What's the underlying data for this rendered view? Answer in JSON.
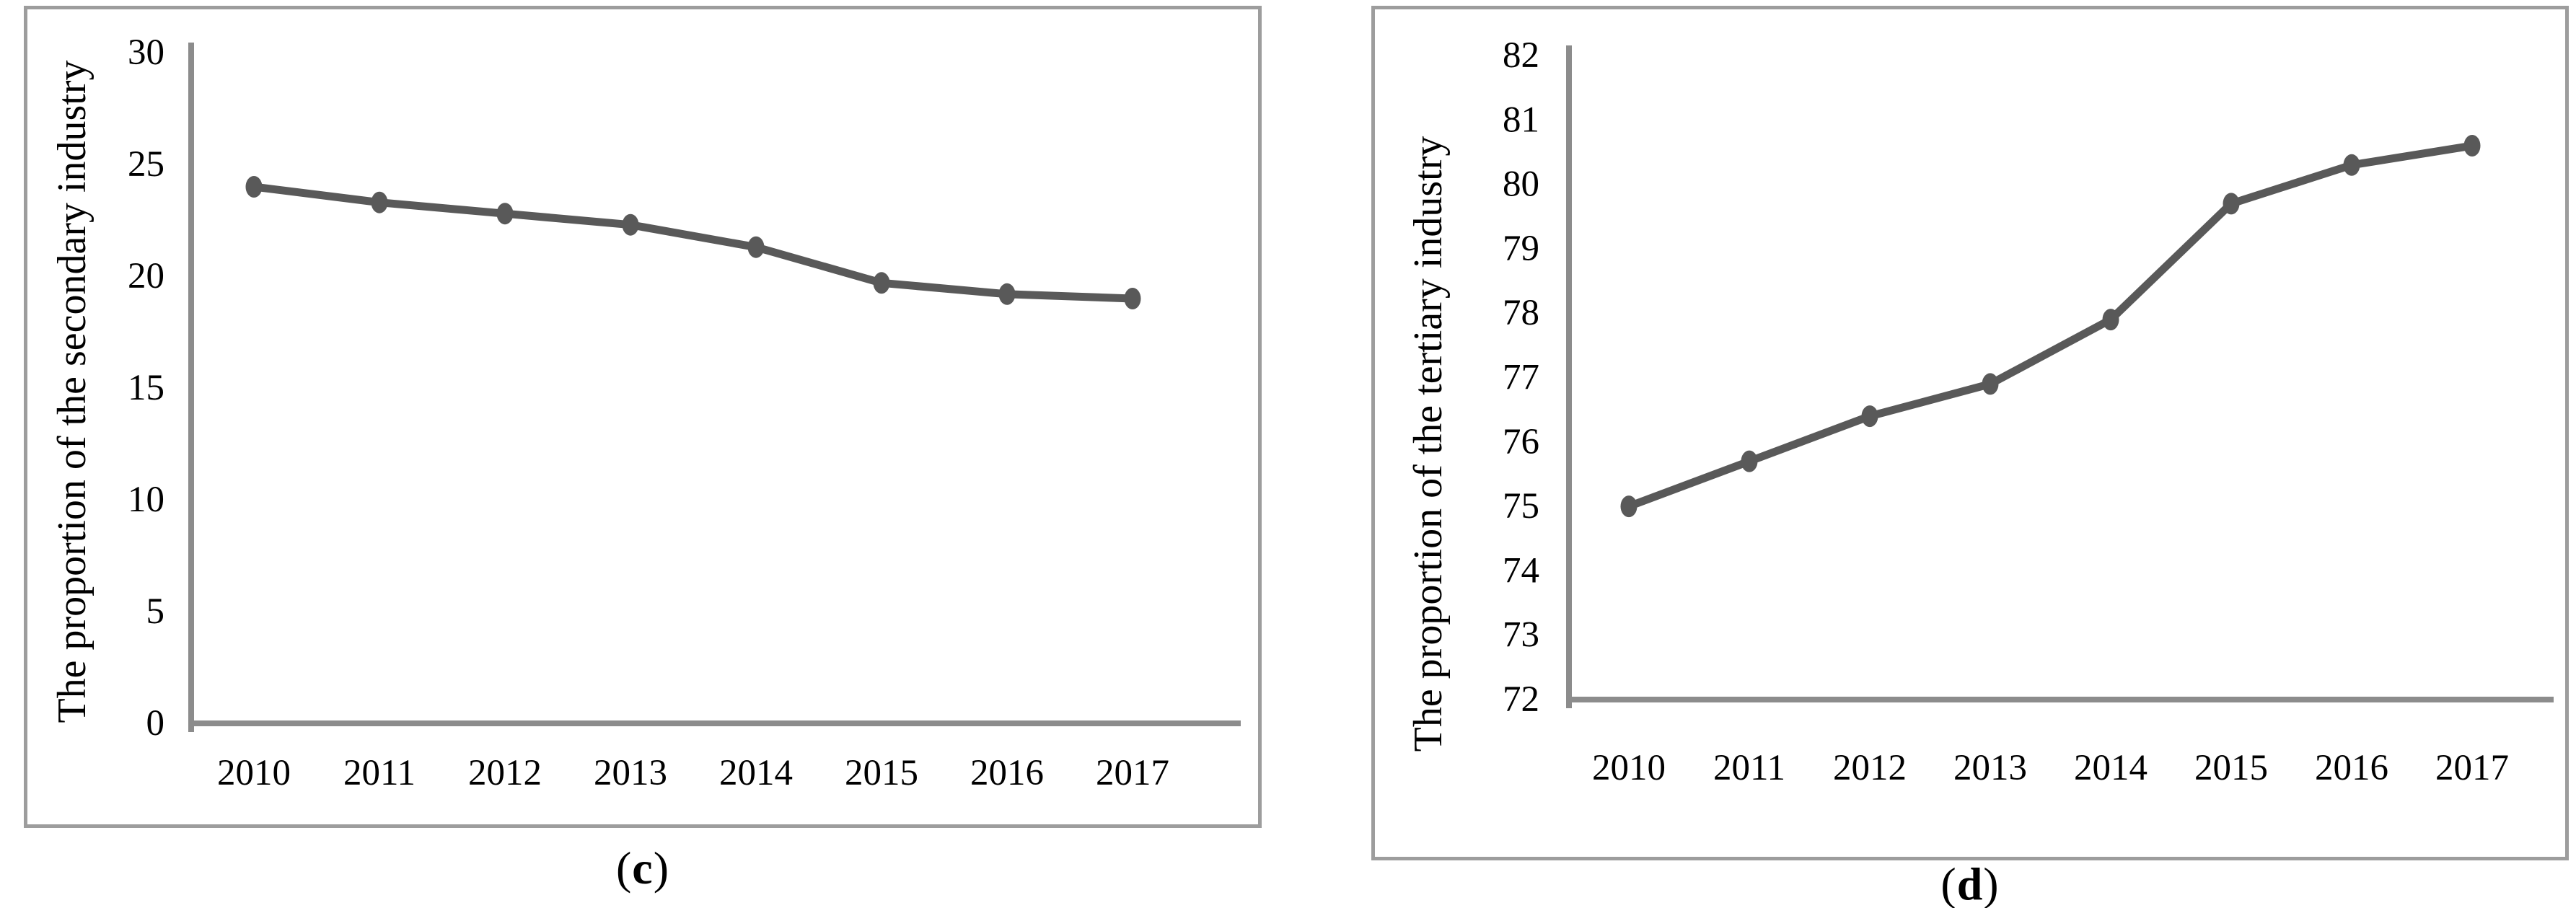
{
  "figure": {
    "background": "#ffffff",
    "border_color": "#9d9d9d"
  },
  "chart_data": [
    {
      "type": "line",
      "title": "",
      "xlabel": "",
      "ylabel": "The proportion of the secondary industry",
      "categories": [
        "2010",
        "2011",
        "2012",
        "2013",
        "2014",
        "2015",
        "2016",
        "2017"
      ],
      "values": [
        24.0,
        23.3,
        22.8,
        22.3,
        21.3,
        19.7,
        19.2,
        19.0
      ],
      "ylim": [
        0,
        30
      ],
      "ytick_step": 5,
      "ytick_labels": [
        "30",
        "25",
        "20",
        "15",
        "10",
        "5",
        "0"
      ],
      "grid": false,
      "legend": "none",
      "line_color": "#595959",
      "marker_color": "#595959",
      "axis_color": "#8c8c8c",
      "caption": {
        "open": "(",
        "letter": "c",
        "close": ")"
      }
    },
    {
      "type": "line",
      "title": "",
      "xlabel": "",
      "ylabel": "The proportion of the tertiary industry",
      "categories": [
        "2010",
        "2011",
        "2012",
        "2013",
        "2014",
        "2015",
        "2016",
        "2017"
      ],
      "values": [
        75.0,
        75.7,
        76.4,
        76.9,
        77.9,
        79.7,
        80.3,
        80.6
      ],
      "ylim": [
        72,
        82
      ],
      "ytick_step": 1,
      "ytick_labels": [
        "82",
        "81",
        "80",
        "79",
        "78",
        "77",
        "76",
        "75",
        "74",
        "73",
        "72"
      ],
      "grid": false,
      "legend": "none",
      "line_color": "#595959",
      "marker_color": "#595959",
      "axis_color": "#8c8c8c",
      "caption": {
        "open": "(",
        "letter": "d",
        "close": ")"
      }
    }
  ]
}
